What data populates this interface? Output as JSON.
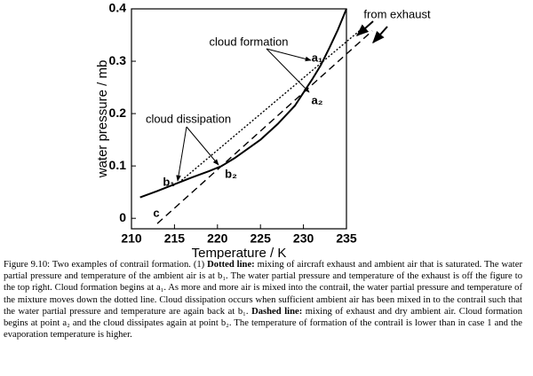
{
  "chart_data": {
    "type": "line",
    "xlabel": "Temperature / K",
    "ylabel": "water pressure / mb",
    "xlim": [
      210,
      235
    ],
    "xticks": [
      210,
      215,
      220,
      225,
      230,
      235
    ],
    "ylim": [
      -0.02,
      0.4
    ],
    "yticks": [
      0,
      0.1,
      0.2,
      0.3,
      0.4
    ],
    "series": [
      {
        "style": "solid",
        "color": "#000000",
        "x": [
          211,
          213,
          215,
          217,
          219,
          220.5,
          222,
          225,
          227,
          229,
          230,
          231,
          232,
          233,
          234,
          235
        ],
        "values": [
          0.04,
          0.052,
          0.065,
          0.078,
          0.09,
          0.1,
          0.115,
          0.15,
          0.18,
          0.215,
          0.24,
          0.265,
          0.292,
          0.325,
          0.36,
          0.4
        ]
      },
      {
        "style": "dotted",
        "color": "#000000",
        "x": [
          215.5,
          236.5
        ],
        "values": [
          0.068,
          0.358
        ]
      },
      {
        "style": "dashed",
        "color": "#000000",
        "x": [
          213,
          238
        ],
        "values": [
          -0.01,
          0.358
        ]
      }
    ],
    "annotations": [
      "cloud formation",
      "cloud dissipation",
      "from exhaust",
      "a₁",
      "a₂",
      "b₁",
      "b₂",
      "c"
    ]
  },
  "caption": [
    {
      "text": "Figure 9.10: Two examples of contrail formation. (1) "
    },
    {
      "text": "Dotted line:",
      "style": "bold"
    },
    {
      "text": " mixing of aircraft exhaust and ambient air that is saturated. The water partial pressure and temperature of the ambient air is at b₁. The water partial pressure and temperature of the exhaust is off the figure to the top right. Cloud formation begins at a₁. As more and more air is mixed into the contrail, the water partial pressure and temperature of the mixture moves down the dotted line. Cloud dissipation occurs when sufficient ambient air has been mixed in to the contrail such that the water partial pressure and temperature are again back at b₁. "
    },
    {
      "text": "Dashed line:",
      "style": "bold"
    },
    {
      "text": " mixing of exhaust and dry ambient air. Cloud formation begins at point a₂ and the cloud dissipates again at point b₂. The temperature of formation of the contrail is lower than in case 1 and the evaporation temperature is higher."
    }
  ]
}
